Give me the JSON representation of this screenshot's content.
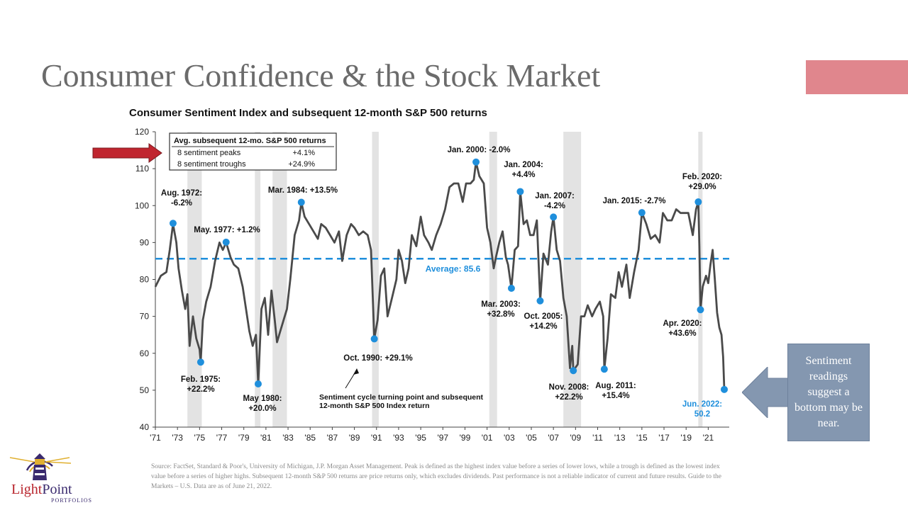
{
  "slide": {
    "title": "Consumer Confidence & the Stock Market",
    "accent_color": "#e0868d",
    "callout_text": "Sentiment readings suggest a bottom may be near.",
    "callout_color": "#8497b0",
    "source_note": "Source: FactSet, Standard & Poor's, University of Michigan, J.P. Morgan Asset Management. Peak is defined as the highest index value before a series of lower lows, while a trough is defined as the lowest index value before a series of higher highs. Subsequent 12-month S&P 500 returns are price returns only, which excludes dividends. Past performance is not a reliable indicator of current and future results. Guide to the Markets – U.S. Data are as of June 21, 2022.",
    "logo": {
      "name_first": "Light",
      "name_rest": "Point",
      "sub": "PORTFOLIOS"
    }
  },
  "chart_data": {
    "type": "line",
    "title": "Consumer Sentiment Index and subsequent 12-month S&P 500 returns",
    "ylim": [
      40,
      120
    ],
    "yticks": [
      40,
      50,
      60,
      70,
      80,
      90,
      100,
      110,
      120
    ],
    "xlim": [
      1971,
      2022.9
    ],
    "xtick_labels": [
      "'71",
      "'73",
      "'75",
      "'77",
      "'79",
      "'81",
      "'83",
      "'85",
      "'87",
      "'89",
      "'91",
      "'93",
      "'95",
      "'97",
      "'99",
      "'01",
      "'03",
      "'05",
      "'07",
      "'09",
      "'11",
      "'13",
      "'15",
      "'17",
      "'19",
      "'21"
    ],
    "xtick_years": [
      1971,
      1973,
      1975,
      1977,
      1979,
      1981,
      1983,
      1985,
      1987,
      1989,
      1991,
      1993,
      1995,
      1997,
      1999,
      2001,
      2003,
      2005,
      2007,
      2009,
      2011,
      2013,
      2015,
      2017,
      2019,
      2021
    ],
    "average": {
      "value": 85.6,
      "label": "Average: 85.6",
      "color": "#1f8fdc"
    },
    "line_color": "#4a4a4a",
    "point_color": "#1f8fdc",
    "recessions": [
      [
        1973.9,
        1975.2
      ],
      [
        1980.0,
        1980.5
      ],
      [
        1981.6,
        1982.9
      ],
      [
        1990.6,
        1991.2
      ],
      [
        2001.2,
        2001.9
      ],
      [
        2007.9,
        2009.5
      ],
      [
        2020.1,
        2020.4
      ]
    ],
    "series": [
      {
        "values": [
          [
            1971.0,
            78
          ],
          [
            1971.5,
            81
          ],
          [
            1972.0,
            82
          ],
          [
            1972.3,
            88
          ],
          [
            1972.6,
            95
          ],
          [
            1972.9,
            90
          ],
          [
            1973.1,
            83
          ],
          [
            1973.4,
            77
          ],
          [
            1973.7,
            72
          ],
          [
            1973.9,
            76
          ],
          [
            1974.1,
            62
          ],
          [
            1974.4,
            70
          ],
          [
            1974.7,
            64
          ],
          [
            1975.0,
            61
          ],
          [
            1975.1,
            57.6
          ],
          [
            1975.3,
            69
          ],
          [
            1975.6,
            74
          ],
          [
            1976.0,
            78
          ],
          [
            1976.4,
            85
          ],
          [
            1976.8,
            90
          ],
          [
            1977.1,
            88
          ],
          [
            1977.4,
            90
          ],
          [
            1977.8,
            86
          ],
          [
            1978.1,
            84
          ],
          [
            1978.5,
            83
          ],
          [
            1978.9,
            78
          ],
          [
            1979.2,
            72
          ],
          [
            1979.5,
            66
          ],
          [
            1979.8,
            62
          ],
          [
            1980.1,
            65
          ],
          [
            1980.3,
            51.7
          ],
          [
            1980.6,
            72
          ],
          [
            1980.9,
            75
          ],
          [
            1981.2,
            65
          ],
          [
            1981.5,
            77
          ],
          [
            1981.8,
            69
          ],
          [
            1982.0,
            63
          ],
          [
            1982.3,
            66
          ],
          [
            1982.6,
            69
          ],
          [
            1982.9,
            72
          ],
          [
            1983.2,
            80
          ],
          [
            1983.6,
            92
          ],
          [
            1984.0,
            96
          ],
          [
            1984.2,
            100.9
          ],
          [
            1984.5,
            97
          ],
          [
            1984.9,
            95
          ],
          [
            1985.3,
            93
          ],
          [
            1985.7,
            91
          ],
          [
            1986.0,
            95
          ],
          [
            1986.4,
            94
          ],
          [
            1986.8,
            92
          ],
          [
            1987.2,
            90
          ],
          [
            1987.6,
            93
          ],
          [
            1987.9,
            85
          ],
          [
            1988.3,
            92
          ],
          [
            1988.7,
            95
          ],
          [
            1989.0,
            94
          ],
          [
            1989.4,
            92
          ],
          [
            1989.8,
            93
          ],
          [
            1990.2,
            92
          ],
          [
            1990.5,
            88
          ],
          [
            1990.7,
            72
          ],
          [
            1990.8,
            63.9
          ],
          [
            1991.1,
            69
          ],
          [
            1991.4,
            81
          ],
          [
            1991.7,
            83
          ],
          [
            1992.0,
            70
          ],
          [
            1992.4,
            75
          ],
          [
            1992.8,
            80
          ],
          [
            1993.0,
            88
          ],
          [
            1993.3,
            85
          ],
          [
            1993.6,
            79
          ],
          [
            1993.9,
            83
          ],
          [
            1994.2,
            92
          ],
          [
            1994.6,
            89
          ],
          [
            1995.0,
            97
          ],
          [
            1995.3,
            92
          ],
          [
            1995.7,
            90
          ],
          [
            1996.0,
            88
          ],
          [
            1996.4,
            92
          ],
          [
            1996.8,
            95
          ],
          [
            1997.2,
            99
          ],
          [
            1997.6,
            105
          ],
          [
            1998.0,
            106
          ],
          [
            1998.4,
            106
          ],
          [
            1998.8,
            101
          ],
          [
            1999.1,
            106
          ],
          [
            1999.5,
            106
          ],
          [
            1999.8,
            107
          ],
          [
            2000.0,
            111.8
          ],
          [
            2000.3,
            108
          ],
          [
            2000.7,
            106
          ],
          [
            2001.0,
            94
          ],
          [
            2001.3,
            90
          ],
          [
            2001.6,
            83
          ],
          [
            2001.8,
            86
          ],
          [
            2002.1,
            90
          ],
          [
            2002.4,
            93
          ],
          [
            2002.7,
            86
          ],
          [
            2002.9,
            84
          ],
          [
            2003.2,
            77.6
          ],
          [
            2003.5,
            88
          ],
          [
            2003.8,
            89
          ],
          [
            2004.0,
            103.8
          ],
          [
            2004.3,
            95
          ],
          [
            2004.6,
            96
          ],
          [
            2004.9,
            92
          ],
          [
            2005.2,
            92
          ],
          [
            2005.5,
            96
          ],
          [
            2005.8,
            74.2
          ],
          [
            2006.1,
            87
          ],
          [
            2006.5,
            84
          ],
          [
            2006.8,
            93
          ],
          [
            2007.0,
            96.9
          ],
          [
            2007.3,
            88
          ],
          [
            2007.6,
            85
          ],
          [
            2007.9,
            75
          ],
          [
            2008.2,
            70
          ],
          [
            2008.5,
            56
          ],
          [
            2008.7,
            62
          ],
          [
            2008.8,
            55.3
          ],
          [
            2009.2,
            57
          ],
          [
            2009.5,
            70
          ],
          [
            2009.8,
            70
          ],
          [
            2010.1,
            73
          ],
          [
            2010.5,
            70
          ],
          [
            2010.8,
            72
          ],
          [
            2011.2,
            74
          ],
          [
            2011.5,
            70
          ],
          [
            2011.6,
            55.7
          ],
          [
            2011.9,
            64
          ],
          [
            2012.2,
            76
          ],
          [
            2012.6,
            75
          ],
          [
            2012.9,
            82
          ],
          [
            2013.2,
            78
          ],
          [
            2013.6,
            84
          ],
          [
            2013.9,
            75
          ],
          [
            2014.3,
            82
          ],
          [
            2014.7,
            88
          ],
          [
            2015.0,
            98.1
          ],
          [
            2015.4,
            95
          ],
          [
            2015.8,
            91
          ],
          [
            2016.2,
            92
          ],
          [
            2016.6,
            90
          ],
          [
            2016.9,
            98
          ],
          [
            2017.3,
            96
          ],
          [
            2017.7,
            96
          ],
          [
            2018.1,
            99
          ],
          [
            2018.5,
            98
          ],
          [
            2018.9,
            98
          ],
          [
            2019.2,
            98
          ],
          [
            2019.6,
            92
          ],
          [
            2019.9,
            99
          ],
          [
            2020.1,
            101
          ],
          [
            2020.2,
            89
          ],
          [
            2020.3,
            71.8
          ],
          [
            2020.5,
            78
          ],
          [
            2020.8,
            81
          ],
          [
            2021.0,
            79
          ],
          [
            2021.2,
            84
          ],
          [
            2021.4,
            88
          ],
          [
            2021.6,
            80
          ],
          [
            2021.8,
            71
          ],
          [
            2022.0,
            67
          ],
          [
            2022.2,
            65
          ],
          [
            2022.35,
            59
          ],
          [
            2022.45,
            50.2
          ]
        ]
      }
    ],
    "peaks_troughs": [
      {
        "x": 1972.6,
        "y": 95.2
      },
      {
        "x": 1975.1,
        "y": 57.6
      },
      {
        "x": 1977.4,
        "y": 90.1
      },
      {
        "x": 1980.3,
        "y": 51.7
      },
      {
        "x": 1984.2,
        "y": 100.9
      },
      {
        "x": 1990.8,
        "y": 63.9
      },
      {
        "x": 2000.0,
        "y": 111.8
      },
      {
        "x": 2003.2,
        "y": 77.6
      },
      {
        "x": 2004.0,
        "y": 103.8
      },
      {
        "x": 2005.8,
        "y": 74.2
      },
      {
        "x": 2007.0,
        "y": 96.9
      },
      {
        "x": 2008.8,
        "y": 55.3
      },
      {
        "x": 2011.6,
        "y": 55.7
      },
      {
        "x": 2015.0,
        "y": 98.1
      },
      {
        "x": 2020.1,
        "y": 101.0
      },
      {
        "x": 2020.3,
        "y": 71.8
      },
      {
        "x": 2022.45,
        "y": 50.2
      }
    ],
    "annotations": [
      {
        "lines": [
          "Aug. 1972:",
          "-6.2%"
        ]
      },
      {
        "lines": [
          "Feb. 1975:",
          "+22.2%"
        ]
      },
      {
        "lines": [
          "May. 1977: +1.2%"
        ]
      },
      {
        "lines": [
          "May 1980:",
          "+20.0%"
        ]
      },
      {
        "lines": [
          "Mar. 1984: +13.5%"
        ]
      },
      {
        "lines": [
          "Oct. 1990: +29.1%"
        ]
      },
      {
        "lines": [
          "Jan. 2000: -2.0%"
        ]
      },
      {
        "lines": [
          "Mar. 2003:",
          "+32.8%"
        ]
      },
      {
        "lines": [
          "Jan. 2004:",
          "+4.4%"
        ]
      },
      {
        "lines": [
          "Oct. 2005:",
          "+14.2%"
        ]
      },
      {
        "lines": [
          "Jan. 2007:",
          "-4.2%"
        ]
      },
      {
        "lines": [
          "Nov. 2008:",
          "+22.2%"
        ]
      },
      {
        "lines": [
          "Aug. 2011:",
          "+15.4%"
        ]
      },
      {
        "lines": [
          "Jan. 2015: -2.7%"
        ]
      },
      {
        "lines": [
          "Feb. 2020:",
          "+29.0%"
        ]
      },
      {
        "lines": [
          "Apr. 2020:",
          "+43.6%"
        ]
      },
      {
        "lines": [
          "Jun. 2022:",
          "50.2"
        ]
      }
    ],
    "turning_point_note": [
      "Sentiment cycle turning point and subsequent",
      "12-month S&P 500 Index return"
    ],
    "legend_table": {
      "header": "Avg. subsequent 12-mo. S&P 500 returns",
      "rows": [
        {
          "label": "8 sentiment peaks",
          "value": "+4.1%"
        },
        {
          "label": "8 sentiment troughs",
          "value": "+24.9%"
        }
      ]
    }
  }
}
